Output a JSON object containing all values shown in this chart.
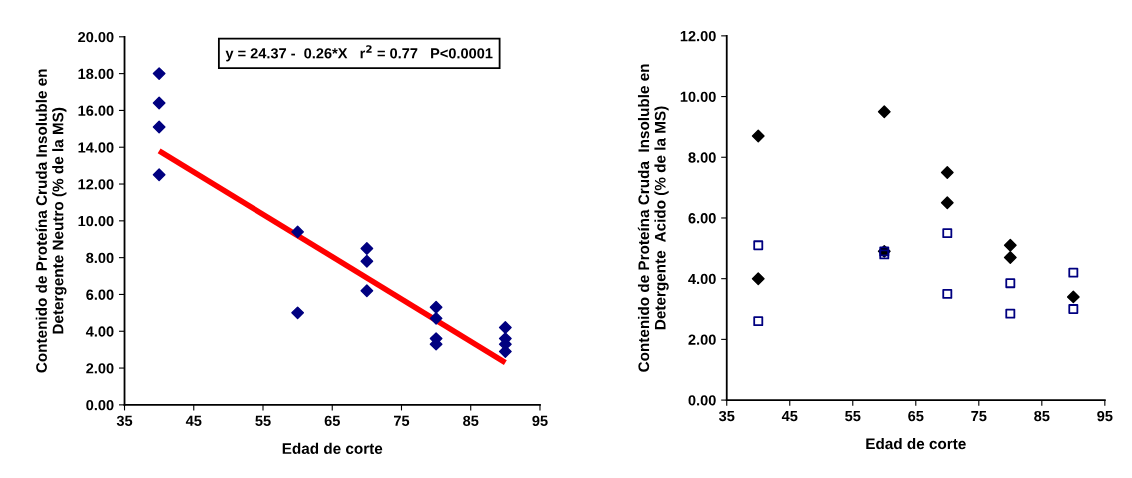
{
  "chart_data": [
    {
      "type": "scatter",
      "xlabel": "Edad de corte",
      "ylabel": "Contenido de Proteína Cruda Insoluble en\nDetergente Neutro (% de la MS)",
      "xlim": [
        35,
        95
      ],
      "xticks": [
        35,
        45,
        55,
        65,
        75,
        85,
        95
      ],
      "ylim": [
        0,
        20
      ],
      "yticks": [
        {
          "value": 0,
          "label": "0.00"
        },
        {
          "value": 2,
          "label": "2.00"
        },
        {
          "value": 4,
          "label": "4.00"
        },
        {
          "value": 6,
          "label": "6.00"
        },
        {
          "value": 8,
          "label": "8.00"
        },
        {
          "value": 10,
          "label": "10.00"
        },
        {
          "value": 12,
          "label": "12.00"
        },
        {
          "value": 14,
          "label": "14.00"
        },
        {
          "value": 16,
          "label": "16.00"
        },
        {
          "value": 18,
          "label": "18.00"
        },
        {
          "value": 20,
          "label": "20.00"
        }
      ],
      "grid": false,
      "annotations": [
        "y = 24.37 -  0.26*X   r$^{2}$ = 0.77   P<0.0001"
      ],
      "series": [
        {
          "color": "#000080",
          "marker": "diamond",
          "x": [
            40,
            40,
            40,
            40,
            60,
            60,
            70,
            70,
            70,
            80,
            80,
            80,
            80,
            90,
            90,
            90,
            90
          ],
          "values": [
            18.0,
            16.4,
            15.1,
            12.5,
            9.4,
            5.0,
            8.5,
            7.8,
            6.2,
            5.3,
            4.7,
            3.6,
            3.3,
            4.2,
            3.6,
            3.3,
            2.9
          ]
        },
        {
          "type": "line",
          "color": "#ff0000",
          "marker": "none",
          "x": [
            40,
            90
          ],
          "values": [
            13.8,
            2.3
          ]
        }
      ]
    },
    {
      "type": "scatter",
      "xlabel": "Edad de corte",
      "ylabel": "Contenido de Proteína Cruda  Insoluble en\nDetergente  Acido (% de la MS)",
      "xlim": [
        35,
        95
      ],
      "xticks": [
        35,
        45,
        55,
        65,
        75,
        85,
        95
      ],
      "ylim": [
        0,
        12
      ],
      "yticks": [
        {
          "value": 0,
          "label": "0.00"
        },
        {
          "value": 2,
          "label": "2.00"
        },
        {
          "value": 4,
          "label": "4.00"
        },
        {
          "value": 6,
          "label": "6.00"
        },
        {
          "value": 8,
          "label": "8.00"
        },
        {
          "value": 10,
          "label": "10.00"
        },
        {
          "value": 12,
          "label": "12.00"
        }
      ],
      "grid": false,
      "series": [
        {
          "color": "#000000",
          "marker": "diamond",
          "x": [
            40,
            40,
            60,
            60,
            70,
            70,
            80,
            80,
            90
          ],
          "values": [
            8.7,
            4.0,
            9.5,
            4.9,
            7.5,
            6.5,
            5.1,
            4.7,
            3.4
          ]
        },
        {
          "color": "#000080",
          "marker": "square",
          "x": [
            40,
            40,
            60,
            60,
            70,
            70,
            80,
            80,
            90,
            90
          ],
          "values": [
            5.1,
            2.6,
            4.9,
            4.8,
            5.5,
            3.5,
            3.85,
            2.85,
            4.2,
            3.0
          ]
        }
      ]
    }
  ]
}
